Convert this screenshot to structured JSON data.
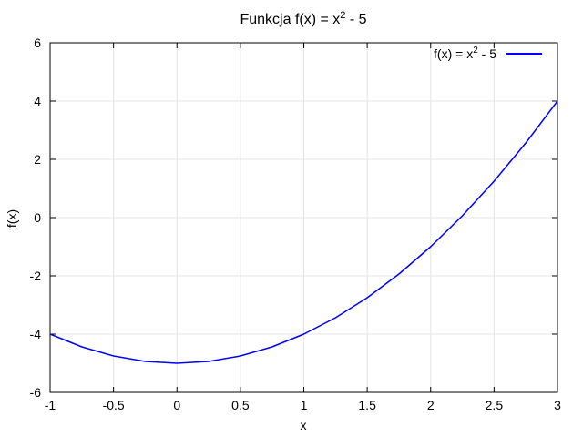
{
  "chart_data": {
    "type": "line",
    "title": {
      "main": "Funkcja f(x) = x",
      "sup": "2",
      "tail": " - 5"
    },
    "xlabel": "x",
    "ylabel": "f(x)",
    "xlim": [
      -1,
      3
    ],
    "ylim": [
      -6,
      6
    ],
    "xticks": [
      -1,
      -0.5,
      0,
      0.5,
      1,
      1.5,
      2,
      2.5,
      3
    ],
    "xtick_labels": [
      "-1",
      "-0.5",
      "0",
      "0.5",
      "1",
      "1.5",
      "2",
      "2.5",
      "3"
    ],
    "yticks": [
      -6,
      -4,
      -2,
      0,
      2,
      4,
      6
    ],
    "ytick_labels": [
      "-6",
      "-4",
      "-2",
      "0",
      "2",
      "4",
      "6"
    ],
    "grid": true,
    "legend_position": "top-right",
    "series": [
      {
        "name": {
          "main": "f(x) = x",
          "sup": "2",
          "tail": " - 5"
        },
        "color": "#0000ff",
        "x": [
          -1,
          -0.75,
          -0.5,
          -0.25,
          0,
          0.25,
          0.5,
          0.75,
          1,
          1.25,
          1.5,
          1.75,
          2,
          2.25,
          2.5,
          2.75,
          3
        ],
        "y": [
          -4,
          -4.4375,
          -4.75,
          -4.9375,
          -5,
          -4.9375,
          -4.75,
          -4.4375,
          -4,
          -3.4375,
          -2.75,
          -1.9375,
          -1,
          0.0625,
          1.25,
          2.5625,
          4
        ]
      }
    ]
  }
}
